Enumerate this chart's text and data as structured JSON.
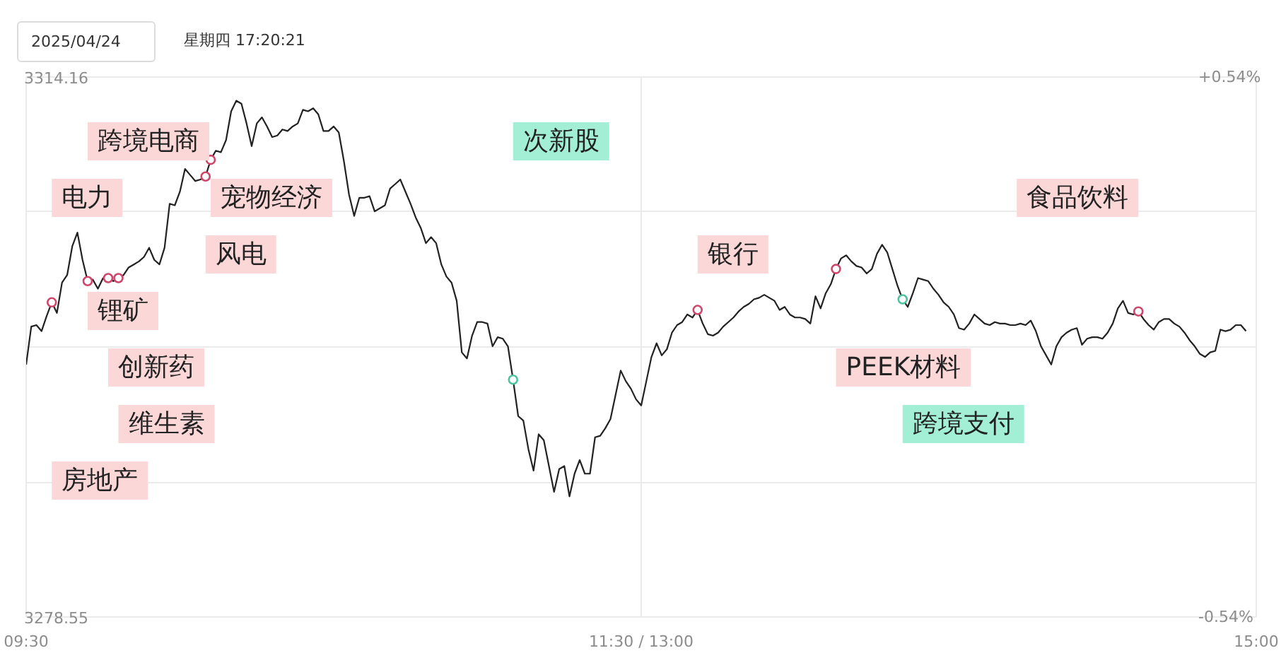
{
  "chart_data": {
    "type": "line",
    "title": "2025/04/24",
    "subtitle": "星期四 17:20:21",
    "categories": [
      "09:30",
      null,
      null,
      null,
      null,
      null,
      null,
      null,
      null,
      null,
      null,
      null,
      null,
      null,
      null,
      null,
      null,
      null,
      null,
      null,
      null,
      null,
      null,
      null,
      null,
      null,
      null,
      null,
      null,
      null,
      null,
      null,
      null,
      null,
      null,
      null,
      null,
      null,
      null,
      null,
      null,
      null,
      null,
      null,
      null,
      null,
      null,
      null,
      null,
      null,
      null,
      null,
      null,
      null,
      null,
      null,
      null,
      null,
      null,
      null,
      null,
      null,
      null,
      null,
      null,
      null,
      null,
      null,
      null,
      null,
      null,
      null,
      null,
      null,
      null,
      null,
      null,
      null,
      null,
      null,
      null,
      null,
      null,
      null,
      null,
      null,
      null,
      null,
      null,
      null,
      null,
      null,
      null,
      null,
      null,
      null,
      null,
      null,
      null,
      null,
      null,
      null,
      null,
      null,
      null,
      null,
      null,
      null,
      null,
      null,
      null,
      null,
      null,
      null,
      null,
      null,
      null,
      null,
      null,
      null,
      "11:30 / 13:00",
      null,
      null,
      null,
      null,
      null,
      null,
      null,
      null,
      null,
      null,
      null,
      null,
      null,
      null,
      null,
      null,
      null,
      null,
      null,
      null,
      null,
      null,
      null,
      null,
      null,
      null,
      null,
      null,
      null,
      null,
      null,
      null,
      null,
      null,
      null,
      null,
      null,
      null,
      null,
      null,
      null,
      null,
      null,
      null,
      null,
      null,
      null,
      null,
      null,
      null,
      null,
      null,
      null,
      null,
      null,
      null,
      null,
      null,
      null,
      null,
      null,
      null,
      null,
      null,
      null,
      null,
      null,
      null,
      null,
      null,
      null,
      null,
      null,
      null,
      null,
      null,
      null,
      null,
      null,
      null,
      null,
      null,
      null,
      null,
      null,
      null,
      null,
      null,
      null,
      null,
      null,
      null,
      null,
      null,
      null,
      null,
      null,
      null,
      null,
      null,
      null,
      null,
      null,
      null,
      null,
      null,
      null,
      null,
      null,
      null,
      null,
      null,
      null,
      null,
      null,
      null,
      null,
      null,
      null,
      "15:00"
    ],
    "series": [
      {
        "color": "#222222",
        "values": [
          3295.2,
          3297.7,
          3297.8,
          3297.4,
          3298.4,
          3299.3,
          3298.6,
          3300.6,
          3301.1,
          3303.0,
          3303.9,
          3302.1,
          3300.7,
          3300.8,
          3300.2,
          3300.9,
          3300.9,
          3300.7,
          3300.9,
          3301.1,
          3301.6,
          3301.8,
          3302.0,
          3302.3,
          3302.9,
          3302.1,
          3301.8,
          3302.9,
          3305.8,
          3305.7,
          3306.6,
          3308.1,
          3307.7,
          3307.3,
          3307.4,
          3307.6,
          3308.7,
          3309.3,
          3309.2,
          3310.0,
          3311.9,
          3312.6,
          3312.4,
          3311.1,
          3309.6,
          3311.1,
          3311.5,
          3310.9,
          3310.2,
          3310.3,
          3310.7,
          3310.6,
          3310.9,
          3311.1,
          3312.0,
          3311.9,
          3312.1,
          3311.7,
          3310.6,
          3310.6,
          3310.9,
          3310.5,
          3308.6,
          3306.4,
          3305.0,
          3306.2,
          3306.2,
          3306.3,
          3305.3,
          3305.5,
          3305.7,
          3306.8,
          3307.1,
          3307.4,
          3306.6,
          3305.8,
          3304.9,
          3304.2,
          3303.2,
          3303.6,
          3303.2,
          3301.8,
          3301.0,
          3300.6,
          3299.4,
          3296.0,
          3295.6,
          3297.1,
          3298.0,
          3298.0,
          3297.9,
          3296.4,
          3297.0,
          3296.9,
          3296.4,
          3294.2,
          3291.8,
          3291.5,
          3289.6,
          3288.2,
          3290.6,
          3290.2,
          3288.5,
          3286.8,
          3288.3,
          3288.5,
          3286.5,
          3288.0,
          3288.9,
          3288.0,
          3288.0,
          3290.4,
          3290.5,
          3291.0,
          3291.6,
          3293.2,
          3294.8,
          3294.1,
          3293.6,
          3292.9,
          3292.5,
          3294.1,
          3295.7,
          3296.6,
          3295.8,
          3296.2,
          3297.3,
          3297.8,
          3298.0,
          3298.5,
          3298.3,
          3298.8,
          3297.9,
          3297.2,
          3297.1,
          3297.3,
          3297.7,
          3298.0,
          3298.3,
          3298.7,
          3299.0,
          3299.2,
          3299.5,
          3299.6,
          3299.8,
          3299.6,
          3299.4,
          3298.8,
          3299.0,
          3298.5,
          3298.3,
          3298.3,
          3298.2,
          3297.9,
          3299.7,
          3298.9,
          3299.9,
          3300.5,
          3301.5,
          3302.2,
          3302.4,
          3302.0,
          3301.7,
          3301.6,
          3301.2,
          3301.5,
          3302.5,
          3303.1,
          3302.6,
          3301.5,
          3300.4,
          3299.5,
          3299.0,
          3299.9,
          3300.9,
          3300.8,
          3300.7,
          3300.2,
          3299.8,
          3299.3,
          3299.0,
          3298.5,
          3297.6,
          3297.5,
          3297.9,
          3298.5,
          3298.2,
          3297.9,
          3297.8,
          3298.0,
          3297.9,
          3297.9,
          3297.8,
          3297.8,
          3297.9,
          3297.8,
          3298.1,
          3297.4,
          3296.4,
          3295.8,
          3295.2,
          3296.4,
          3297.0,
          3297.3,
          3297.5,
          3297.6,
          3296.5,
          3296.9,
          3297.0,
          3297.0,
          3296.9,
          3297.3,
          3297.9,
          3298.9,
          3299.4,
          3298.6,
          3298.5,
          3298.7,
          3298.2,
          3297.8,
          3297.5,
          3298.0,
          3298.2,
          3298.2,
          3297.9,
          3297.7,
          3297.3,
          3296.8,
          3296.4,
          3295.9,
          3295.7,
          3296.0,
          3296.1,
          3297.5,
          3297.4,
          3297.5,
          3297.8,
          3297.8,
          3297.4,
          null,
          null
        ]
      },
      {
        "type": "scatter",
        "marker": "circle",
        "color": "#d0456a",
        "values": [
          null,
          null,
          null,
          null,
          null,
          3299.3,
          null,
          null,
          null,
          null,
          null,
          null,
          3300.7,
          null,
          null,
          null,
          3300.9,
          null,
          3300.9,
          null,
          null,
          null,
          null,
          null,
          null,
          null,
          null,
          null,
          null,
          null,
          null,
          null,
          null,
          null,
          null,
          3307.6,
          3308.7,
          null,
          null,
          null,
          null,
          null,
          null,
          null,
          null,
          null,
          null,
          null,
          null,
          null,
          null,
          null,
          null,
          null,
          null,
          null,
          null,
          null,
          null,
          null,
          null,
          null,
          null,
          null,
          null,
          null,
          null,
          null,
          null,
          null,
          null,
          null,
          null,
          null,
          null,
          null,
          null,
          null,
          null,
          null,
          null,
          null,
          null,
          null,
          null,
          null,
          null,
          null,
          null,
          null,
          null,
          null,
          null,
          null,
          null,
          null,
          null,
          null,
          null,
          null,
          null,
          null,
          null,
          null,
          null,
          null,
          null,
          null,
          null,
          null,
          null,
          null,
          null,
          null,
          null,
          null,
          null,
          null,
          null,
          null,
          null,
          null,
          null,
          null,
          null,
          null,
          null,
          null,
          null,
          null,
          null,
          3298.8,
          null,
          null,
          null,
          null,
          null,
          null,
          null,
          null,
          null,
          null,
          null,
          null,
          null,
          null,
          null,
          null,
          null,
          null,
          null,
          null,
          null,
          null,
          null,
          null,
          null,
          null,
          3301.5,
          null,
          null,
          null,
          null,
          null,
          null,
          null,
          null,
          null,
          null,
          null,
          null,
          null,
          null,
          null,
          null,
          null,
          null,
          null,
          null,
          null,
          null,
          null,
          null,
          null,
          null,
          null,
          null,
          null,
          null,
          null,
          null,
          null,
          null,
          null,
          null,
          null,
          null,
          null,
          null,
          null,
          null,
          null,
          null,
          null,
          null,
          null,
          null,
          null,
          null,
          null,
          null,
          null,
          null,
          null,
          null,
          null,
          null,
          3298.7,
          null,
          null,
          null,
          null,
          null,
          null,
          null,
          null,
          null,
          null,
          null,
          null,
          null,
          null,
          null,
          null,
          null,
          null,
          null,
          null,
          null,
          null,
          null
        ]
      },
      {
        "type": "scatter",
        "marker": "circle",
        "color": "#4fc49c",
        "values": [
          null,
          null,
          null,
          null,
          null,
          null,
          null,
          null,
          null,
          null,
          null,
          null,
          null,
          null,
          null,
          null,
          null,
          null,
          null,
          null,
          null,
          null,
          null,
          null,
          null,
          null,
          null,
          null,
          null,
          null,
          null,
          null,
          null,
          null,
          null,
          null,
          null,
          null,
          null,
          null,
          null,
          null,
          null,
          null,
          null,
          null,
          null,
          null,
          null,
          null,
          null,
          null,
          null,
          null,
          null,
          null,
          null,
          null,
          null,
          null,
          null,
          null,
          null,
          null,
          null,
          null,
          null,
          null,
          null,
          null,
          null,
          null,
          null,
          null,
          null,
          null,
          null,
          null,
          null,
          null,
          null,
          null,
          null,
          null,
          null,
          null,
          null,
          null,
          null,
          null,
          null,
          null,
          null,
          null,
          null,
          3294.2,
          null,
          null,
          null,
          null,
          null,
          null,
          null,
          null,
          null,
          null,
          null,
          null,
          null,
          null,
          null,
          null,
          null,
          null,
          null,
          null,
          null,
          null,
          null,
          null,
          null,
          null,
          null,
          null,
          null,
          null,
          null,
          null,
          null,
          null,
          null,
          null,
          null,
          null,
          null,
          null,
          null,
          null,
          null,
          null,
          null,
          null,
          null,
          null,
          null,
          null,
          null,
          null,
          null,
          null,
          null,
          null,
          null,
          null,
          null,
          null,
          null,
          null,
          null,
          null,
          null,
          null,
          null,
          null,
          null,
          null,
          null,
          null,
          null,
          null,
          null,
          3299.5,
          null,
          null,
          null,
          null,
          null,
          null,
          null,
          null,
          null,
          null,
          null,
          null,
          null,
          null,
          null,
          null,
          null,
          null,
          null,
          null,
          null,
          null,
          null,
          null,
          null,
          null,
          null,
          null,
          null,
          null,
          null,
          null,
          null,
          null,
          null,
          null,
          null,
          null,
          null,
          null,
          null,
          null,
          null,
          null,
          null,
          null,
          null,
          null,
          null,
          null,
          null,
          null,
          null,
          null,
          null,
          null,
          null,
          null,
          null,
          null,
          null,
          null,
          null,
          null,
          null,
          null,
          null,
          null,
          null
        ]
      }
    ],
    "ylim": [
      3278.55,
      3314.16
    ],
    "yticks": [
      3278.55,
      {
        "value": 3287.45,
        "label": null
      },
      {
        "value": 3296.36,
        "label": null
      },
      {
        "value": 3305.26,
        "label": null
      },
      3314.16
    ],
    "y2lim": [
      -0.54,
      0.54
    ],
    "y2ticks": [
      {
        "value": -0.54,
        "label": "-0.54%"
      },
      {
        "value": 0.54,
        "label": "+0.54%"
      }
    ],
    "grid": true,
    "annotations": [
      "电力",
      "房地产",
      "跨境电商",
      "锂矿",
      "创新药",
      "维生素",
      "风电",
      "宠物经济",
      "次新股",
      "银行",
      "PEEK材料",
      "跨境支付",
      "食品饮料"
    ]
  }
}
